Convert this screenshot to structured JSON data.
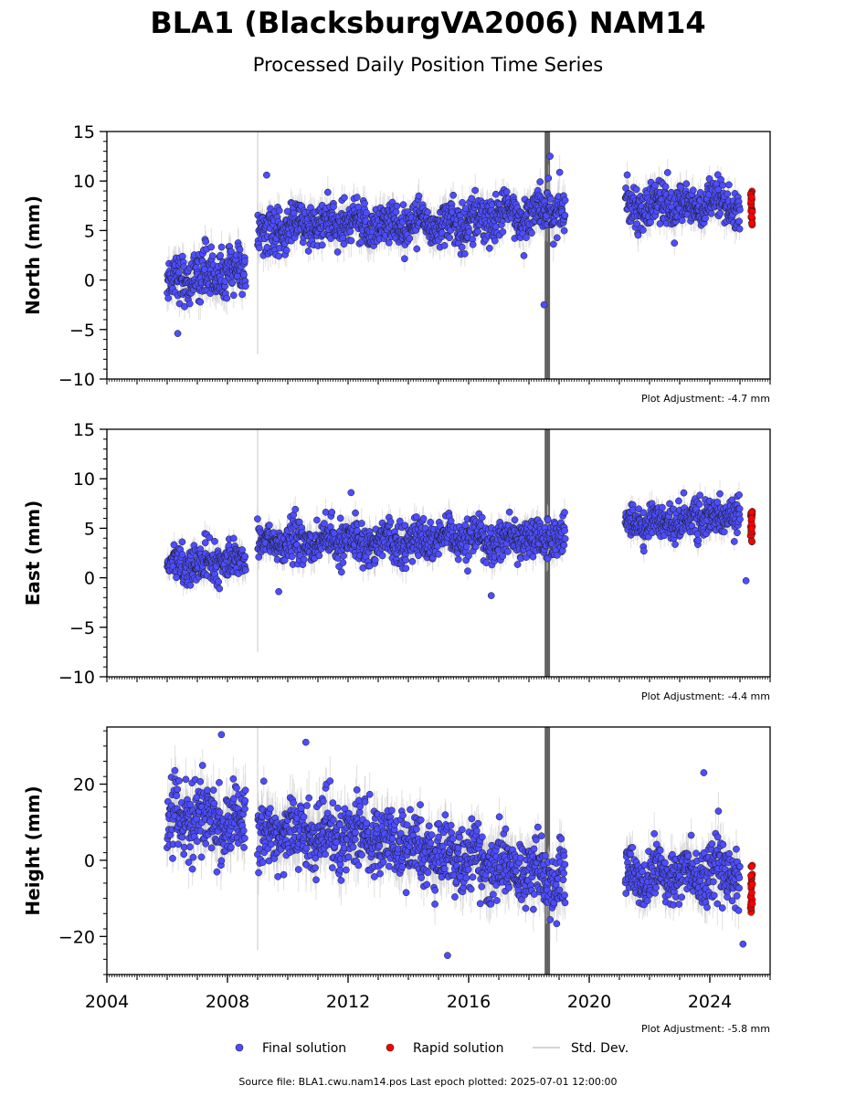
{
  "title": "BLA1 (BlacksburgVA2006) NAM14",
  "subtitle": "Processed Daily Position Time Series",
  "footer": "Source file: BLA1.cwu.nam14.pos  Last epoch plotted: 2025-07-01 12:00:00",
  "legend": {
    "final": "Final solution",
    "rapid": "Rapid solution",
    "std": "Std. Dev."
  },
  "colors": {
    "final": "#4d4dff",
    "rapid": "#ff0000",
    "std": "#c8c8c8",
    "gap_band": "#5a5a5a"
  },
  "chart_data": [
    {
      "type": "scatter",
      "panel": "north",
      "ylabel": "North (mm)",
      "ylim": [
        -10,
        15
      ],
      "yticks": [
        -10,
        -5,
        0,
        5,
        10,
        15
      ],
      "xlim": [
        2004,
        2026
      ],
      "adjustment": "Plot Adjustment: -4.7 mm",
      "segments": [
        {
          "x": [
            2006.0,
            2008.6
          ],
          "mean": [
            0.0,
            1.0
          ],
          "spread": 1.6
        },
        {
          "x": [
            2009.0,
            2010.0
          ],
          "mean": [
            4.3,
            5.0
          ],
          "spread": 1.5
        },
        {
          "x": [
            2010.0,
            2016.0
          ],
          "mean": [
            5.5,
            5.8
          ],
          "spread": 1.5
        },
        {
          "x": [
            2016.0,
            2019.2
          ],
          "mean": [
            6.0,
            7.2
          ],
          "spread": 1.5
        },
        {
          "x": [
            2021.2,
            2025.0
          ],
          "mean": [
            7.5,
            7.5
          ],
          "spread": 1.4
        }
      ],
      "outliers": [
        [
          2006.35,
          -5.4
        ],
        [
          2009.3,
          10.6
        ],
        [
          2018.5,
          -2.5
        ],
        [
          2018.7,
          12.5
        ]
      ],
      "rapid": {
        "x": [
          2025.3,
          2025.5
        ],
        "range": [
          5.5,
          9.0
        ]
      }
    },
    {
      "type": "scatter",
      "panel": "east",
      "ylabel": "East (mm)",
      "ylim": [
        -10,
        15
      ],
      "yticks": [
        -10,
        -5,
        0,
        5,
        10,
        15
      ],
      "xlim": [
        2004,
        2026
      ],
      "adjustment": "Plot Adjustment: -4.4 mm",
      "segments": [
        {
          "x": [
            2006.0,
            2008.6
          ],
          "mean": [
            1.2,
            1.8
          ],
          "spread": 1.2
        },
        {
          "x": [
            2009.0,
            2019.2
          ],
          "mean": [
            3.5,
            4.0
          ],
          "spread": 1.3
        },
        {
          "x": [
            2021.2,
            2025.0
          ],
          "mean": [
            5.5,
            6.2
          ],
          "spread": 1.2
        }
      ],
      "outliers": [
        [
          2009.7,
          -1.4
        ],
        [
          2012.1,
          8.6
        ],
        [
          2016.75,
          -1.8
        ],
        [
          2025.2,
          -0.3
        ]
      ],
      "rapid": {
        "x": [
          2025.3,
          2025.5
        ],
        "range": [
          3.5,
          7.0
        ]
      }
    },
    {
      "type": "scatter",
      "panel": "height",
      "ylabel": "Height (mm)",
      "ylim": [
        -30,
        35
      ],
      "yticks": [
        -20,
        0,
        20
      ],
      "xlim": [
        2004,
        2026
      ],
      "xticks": [
        "2004",
        "2008",
        "2012",
        "2016",
        "2020",
        "2024"
      ],
      "adjustment": "Plot Adjustment: -5.8 mm",
      "segments": [
        {
          "x": [
            2006.0,
            2008.6
          ],
          "mean": [
            12.0,
            9.0
          ],
          "spread": 6.0
        },
        {
          "x": [
            2009.0,
            2013.0
          ],
          "mean": [
            8.0,
            6.0
          ],
          "spread": 6.0
        },
        {
          "x": [
            2013.0,
            2019.2
          ],
          "mean": [
            5.0,
            -5.0
          ],
          "spread": 5.5
        },
        {
          "x": [
            2021.2,
            2025.0
          ],
          "mean": [
            -4.0,
            -3.0
          ],
          "spread": 5.0
        }
      ],
      "outliers": [
        [
          2007.8,
          33.0
        ],
        [
          2010.6,
          31.0
        ],
        [
          2015.3,
          -25.0
        ],
        [
          2023.8,
          23.0
        ],
        [
          2025.1,
          -22.0
        ]
      ],
      "rapid": {
        "x": [
          2025.3,
          2025.5
        ],
        "range": [
          -14.0,
          -1.0
        ]
      }
    }
  ]
}
